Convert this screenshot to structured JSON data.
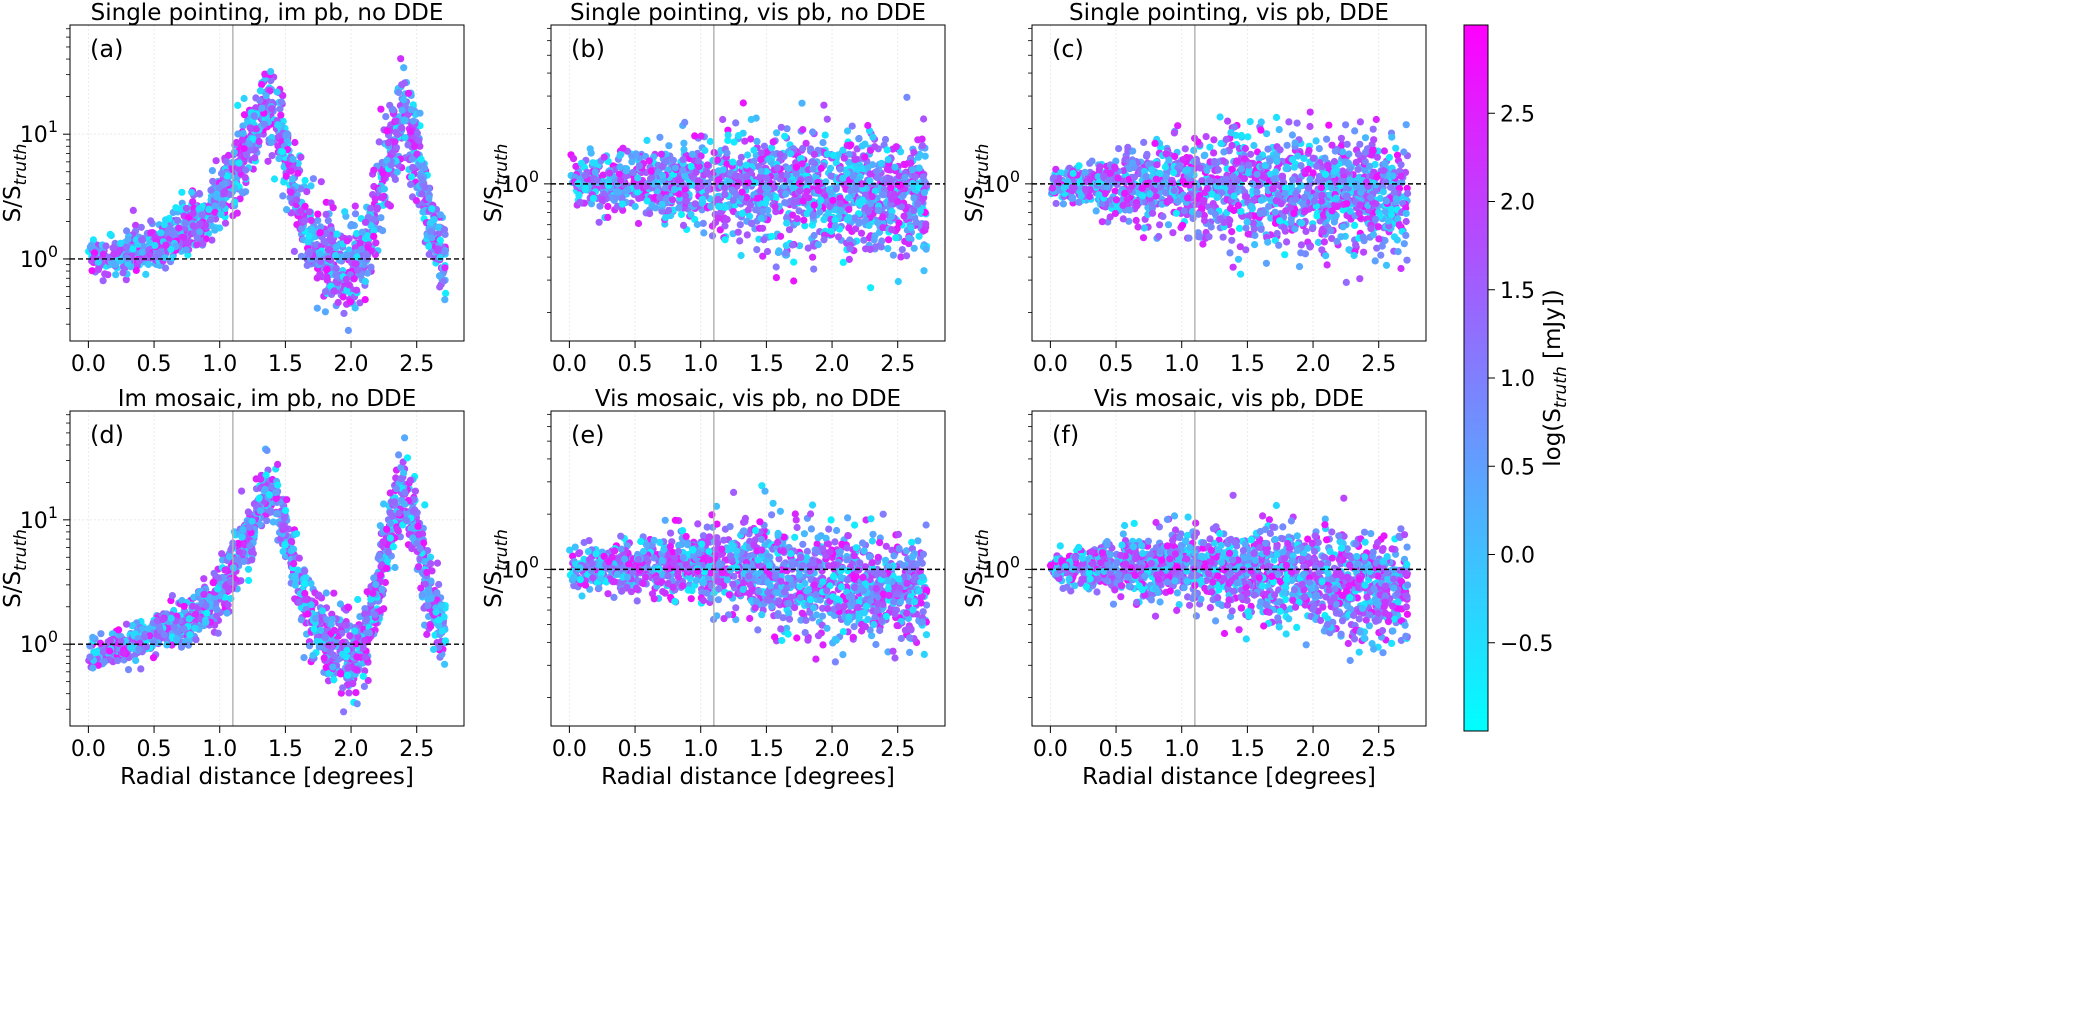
{
  "figure": {
    "colorbar": {
      "label": "log(S_truth [mJy])",
      "label_main": "log(S",
      "label_sub": "truth",
      "label_tail": " [mJy])",
      "ticks": [
        "−0.5",
        "0.0",
        "0.5",
        "1.0",
        "1.5",
        "2.0",
        "2.5"
      ],
      "tick_values": [
        -0.5,
        0.0,
        0.5,
        1.0,
        1.5,
        2.0,
        2.5
      ],
      "range": [
        -1.0,
        3.0
      ],
      "colors": {
        "low": "#00ffff",
        "high": "#ff00ff"
      }
    },
    "marker_color_scale": "cool"
  },
  "chart_data": [
    {
      "panel": "(a)",
      "type": "scatter",
      "title": "Single pointing, im pb, no DDE",
      "xlabel": "",
      "ylabel_main": "S/S",
      "ylabel_sub": "truth",
      "yscale": "log",
      "xlim": [
        -0.14,
        2.86
      ],
      "ylim": [
        0.22,
        75
      ],
      "xticks": [
        "0.0",
        "0.5",
        "1.0",
        "1.5",
        "2.0",
        "2.5"
      ],
      "xtick_values": [
        0,
        0.5,
        1.0,
        1.5,
        2.0,
        2.5
      ],
      "yticks": [
        "10^0",
        "10^1"
      ],
      "ytick_values": [
        1,
        10
      ],
      "reference_line": 1.0,
      "vertical_line": 1.1,
      "grid": true,
      "trend": {
        "x": [
          0.0,
          0.3,
          0.6,
          0.9,
          1.1,
          1.25,
          1.35,
          1.45,
          1.55,
          1.7,
          1.85,
          2.0,
          2.1,
          2.2,
          2.3,
          2.4,
          2.5,
          2.6,
          2.7
        ],
        "y": [
          1.0,
          1.1,
          1.4,
          2.1,
          4.5,
          10.0,
          17.0,
          12.0,
          4.5,
          1.5,
          0.9,
          0.8,
          1.1,
          2.5,
          8.0,
          16.0,
          8.0,
          2.0,
          1.1
        ]
      },
      "spread": 0.4,
      "n_points": 1600
    },
    {
      "panel": "(b)",
      "type": "scatter",
      "title": "Single pointing, vis pb, no DDE",
      "xlabel": "",
      "ylabel_main": "S/S",
      "ylabel_sub": "truth",
      "yscale": "log",
      "xlim": [
        -0.14,
        2.86
      ],
      "ylim": [
        0.14,
        7.3
      ],
      "xticks": [
        "0.0",
        "0.5",
        "1.0",
        "1.5",
        "2.0",
        "2.5"
      ],
      "xtick_values": [
        0,
        0.5,
        1.0,
        1.5,
        2.0,
        2.5
      ],
      "yticks": [
        "10^0"
      ],
      "ytick_values": [
        1
      ],
      "reference_line": 1.0,
      "vertical_line": 1.1,
      "grid": true,
      "trend": {
        "x": [
          0.0,
          1.0,
          1.5,
          2.0,
          2.7
        ],
        "y": [
          1.0,
          1.0,
          0.95,
          0.9,
          0.85
        ]
      },
      "spread": 0.38,
      "n_points": 1600
    },
    {
      "panel": "(c)",
      "type": "scatter",
      "title": "Single pointing, vis pb, DDE",
      "xlabel": "",
      "ylabel_main": "S/S",
      "ylabel_sub": "truth",
      "yscale": "log",
      "xlim": [
        -0.14,
        2.86
      ],
      "ylim": [
        0.14,
        7.3
      ],
      "xticks": [
        "0.0",
        "0.5",
        "1.0",
        "1.5",
        "2.0",
        "2.5"
      ],
      "xtick_values": [
        0,
        0.5,
        1.0,
        1.5,
        2.0,
        2.5
      ],
      "yticks": [
        "10^0"
      ],
      "ytick_values": [
        1
      ],
      "reference_line": 1.0,
      "vertical_line": 1.1,
      "grid": true,
      "trend": {
        "x": [
          0.0,
          1.0,
          1.5,
          2.0,
          2.7
        ],
        "y": [
          1.0,
          1.0,
          0.95,
          0.9,
          0.85
        ]
      },
      "spread": 0.36,
      "n_points": 1600
    },
    {
      "panel": "(d)",
      "type": "scatter",
      "title": "Im mosaic, im pb, no DDE",
      "xlabel": "Radial distance [degrees]",
      "ylabel_main": "S/S",
      "ylabel_sub": "truth",
      "yscale": "log",
      "xlim": [
        -0.14,
        2.86
      ],
      "ylim": [
        0.22,
        75
      ],
      "xticks": [
        "0.0",
        "0.5",
        "1.0",
        "1.5",
        "2.0",
        "2.5"
      ],
      "xtick_values": [
        0,
        0.5,
        1.0,
        1.5,
        2.0,
        2.5
      ],
      "yticks": [
        "10^0",
        "10^1"
      ],
      "ytick_values": [
        1,
        10
      ],
      "reference_line": 1.0,
      "vertical_line": 1.1,
      "grid": true,
      "trend": {
        "x": [
          0.0,
          0.3,
          0.6,
          0.9,
          1.1,
          1.25,
          1.35,
          1.45,
          1.55,
          1.7,
          1.85,
          2.0,
          2.1,
          2.2,
          2.3,
          2.4,
          2.5,
          2.6,
          2.7
        ],
        "y": [
          0.85,
          1.0,
          1.3,
          2.0,
          4.0,
          9.0,
          18.0,
          13.0,
          5.0,
          1.6,
          0.9,
          0.8,
          1.0,
          2.5,
          9.0,
          18.0,
          8.0,
          2.5,
          1.3
        ]
      },
      "spread": 0.35,
      "n_points": 1600
    },
    {
      "panel": "(e)",
      "type": "scatter",
      "title": "Vis mosaic, vis pb, no DDE",
      "xlabel": "Radial distance [degrees]",
      "ylabel_main": "S/S",
      "ylabel_sub": "truth",
      "yscale": "log",
      "xlim": [
        -0.14,
        2.86
      ],
      "ylim": [
        0.14,
        7.3
      ],
      "xticks": [
        "0.0",
        "0.5",
        "1.0",
        "1.5",
        "2.0",
        "2.5"
      ],
      "xtick_values": [
        0,
        0.5,
        1.0,
        1.5,
        2.0,
        2.5
      ],
      "yticks": [
        "10^0"
      ],
      "ytick_values": [
        1
      ],
      "reference_line": 1.0,
      "vertical_line": 1.1,
      "grid": true,
      "trend": {
        "x": [
          0.0,
          1.0,
          1.5,
          2.0,
          2.7
        ],
        "y": [
          1.0,
          1.05,
          0.95,
          0.85,
          0.75
        ]
      },
      "spread": 0.33,
      "n_points": 1600
    },
    {
      "panel": "(f)",
      "type": "scatter",
      "title": "Vis mosaic, vis pb, DDE",
      "xlabel": "Radial distance [degrees]",
      "ylabel_main": "S/S",
      "ylabel_sub": "truth",
      "yscale": "log",
      "xlim": [
        -0.14,
        2.86
      ],
      "ylim": [
        0.14,
        7.3
      ],
      "xticks": [
        "0.0",
        "0.5",
        "1.0",
        "1.5",
        "2.0",
        "2.5"
      ],
      "xtick_values": [
        0,
        0.5,
        1.0,
        1.5,
        2.0,
        2.5
      ],
      "yticks": [
        "10^0"
      ],
      "ytick_values": [
        1
      ],
      "reference_line": 1.0,
      "vertical_line": 1.1,
      "grid": true,
      "trend": {
        "x": [
          0.0,
          1.0,
          1.5,
          2.0,
          2.7
        ],
        "y": [
          1.0,
          1.05,
          0.95,
          0.85,
          0.75
        ]
      },
      "spread": 0.32,
      "n_points": 1600
    }
  ]
}
